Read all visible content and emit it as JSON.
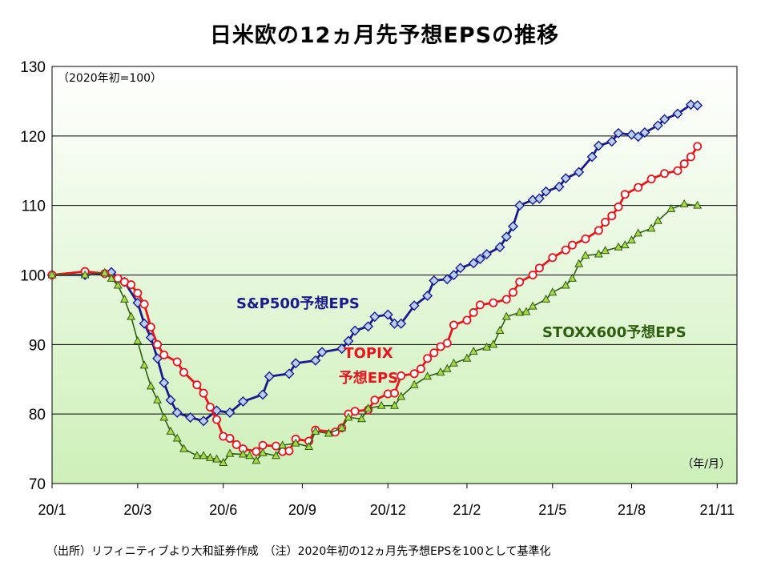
{
  "page": {
    "title": "日米欧の12ヵ月先予想EPSの推移",
    "note": "（出所）リフィニティブより大和証券作成　（注）2020年初の12ヵ月先予想EPSを100として基準化"
  },
  "chart_data": {
    "type": "line",
    "title": "日米欧の12ヵ月先予想EPSの推移",
    "subtitle": "（2020年初=100）",
    "unit_label": "（年/月）",
    "ylim": [
      70,
      130
    ],
    "yticks": [
      70,
      80,
      90,
      100,
      110,
      120,
      130
    ],
    "xlim": [
      0,
      104
    ],
    "xticks": [
      {
        "label": "20/1",
        "pos": 0
      },
      {
        "label": "20/3",
        "pos": 13
      },
      {
        "label": "20/6",
        "pos": 26
      },
      {
        "label": "20/9",
        "pos": 38
      },
      {
        "label": "20/12",
        "pos": 51
      },
      {
        "label": "21/2",
        "pos": 63
      },
      {
        "label": "21/5",
        "pos": 76
      },
      {
        "label": "21/8",
        "pos": 88
      },
      {
        "label": "21/11",
        "pos": 101
      }
    ],
    "grid": true,
    "colors": {
      "bg_top": "#ffffff",
      "bg_bottom": "#cdf0b8",
      "grid": "#000000",
      "sp500": "#1a1a8c",
      "sp500_marker": "#b8d0f0",
      "topix": "#e8141e",
      "topix_marker": "#ffffff",
      "stoxx": "#2e5e10",
      "stoxx_marker": "#a8d84a"
    },
    "series": [
      {
        "name": "S&P500予想EPS",
        "label_lines": [
          "S&P500予想EPS"
        ],
        "color_key": "sp500",
        "marker": "diamond",
        "anchors": [
          [
            0,
            100
          ],
          [
            5,
            100
          ],
          [
            9,
            100.4
          ],
          [
            11,
            99
          ],
          [
            13,
            96
          ],
          [
            14,
            93
          ],
          [
            15,
            91
          ],
          [
            16,
            88
          ],
          [
            17,
            84.5
          ],
          [
            18,
            82
          ],
          [
            19,
            80.2
          ],
          [
            21,
            79.5
          ],
          [
            23,
            79
          ],
          [
            25,
            80.5
          ],
          [
            27,
            80.2
          ],
          [
            29,
            81.8
          ],
          [
            32,
            82.8
          ],
          [
            33,
            85.4
          ],
          [
            36,
            85.8
          ],
          [
            37,
            87.3
          ],
          [
            40,
            87.7
          ],
          [
            41,
            88.9
          ],
          [
            44,
            89.4
          ],
          [
            45,
            90.5
          ],
          [
            46,
            92
          ],
          [
            48,
            92.6
          ],
          [
            49,
            94
          ],
          [
            51,
            94.3
          ],
          [
            52,
            93
          ],
          [
            53,
            93
          ],
          [
            55,
            95.6
          ],
          [
            57,
            97
          ],
          [
            58,
            99.2
          ],
          [
            60,
            99.4
          ],
          [
            61,
            100
          ],
          [
            62,
            101
          ],
          [
            64,
            101.7
          ],
          [
            65,
            102.3
          ],
          [
            66,
            103
          ],
          [
            68,
            104
          ],
          [
            69,
            105.5
          ],
          [
            70,
            107
          ],
          [
            71,
            110
          ],
          [
            73,
            110.8
          ],
          [
            74,
            111
          ],
          [
            75,
            112
          ],
          [
            77,
            112.7
          ],
          [
            78,
            113.9
          ],
          [
            80,
            114.8
          ],
          [
            82,
            117
          ],
          [
            83,
            118.6
          ],
          [
            85,
            119.2
          ],
          [
            86,
            120.4
          ],
          [
            88,
            120.2
          ],
          [
            89,
            119.9
          ],
          [
            90,
            120.5
          ],
          [
            92,
            121.5
          ],
          [
            93,
            122.4
          ],
          [
            95,
            123.2
          ],
          [
            97,
            124.5
          ],
          [
            98,
            124.4
          ]
        ]
      },
      {
        "name": "TOPIX予想EPS",
        "label_lines": [
          "TOPIX",
          "予想EPS"
        ],
        "color_key": "topix",
        "marker": "circle",
        "anchors": [
          [
            0,
            100
          ],
          [
            5,
            100.5
          ],
          [
            8,
            100.2
          ],
          [
            10,
            99.5
          ],
          [
            11,
            99
          ],
          [
            12,
            98.6
          ],
          [
            13,
            97.4
          ],
          [
            14,
            95.8
          ],
          [
            15,
            92.5
          ],
          [
            16,
            90
          ],
          [
            17,
            88.5
          ],
          [
            19,
            87.5
          ],
          [
            20,
            86
          ],
          [
            22,
            84.2
          ],
          [
            23,
            83
          ],
          [
            24,
            81
          ],
          [
            25,
            79.2
          ],
          [
            26,
            76.8
          ],
          [
            27,
            76.5
          ],
          [
            28,
            75.6
          ],
          [
            29,
            75
          ],
          [
            31,
            74.6
          ],
          [
            32,
            75.5
          ],
          [
            34,
            75.4
          ],
          [
            35,
            74.6
          ],
          [
            36,
            74.7
          ],
          [
            37,
            76.4
          ],
          [
            39,
            76.1
          ],
          [
            40,
            77.7
          ],
          [
            43,
            77.4
          ],
          [
            44,
            78
          ],
          [
            45,
            80
          ],
          [
            46,
            80.4
          ],
          [
            48,
            80.6
          ],
          [
            49,
            82
          ],
          [
            51,
            82.9
          ],
          [
            52,
            83
          ],
          [
            53,
            85.5
          ],
          [
            55,
            85.8
          ],
          [
            56,
            86.5
          ],
          [
            57,
            88
          ],
          [
            58,
            88.8
          ],
          [
            59,
            89.7
          ],
          [
            60,
            90.2
          ],
          [
            61,
            92.8
          ],
          [
            63,
            93.5
          ],
          [
            64,
            94.6
          ],
          [
            65,
            95.7
          ],
          [
            67,
            96
          ],
          [
            69,
            96.5
          ],
          [
            70,
            97.5
          ],
          [
            71,
            99
          ],
          [
            73,
            100
          ],
          [
            74,
            101
          ],
          [
            76,
            102.5
          ],
          [
            78,
            103.6
          ],
          [
            79,
            104.3
          ],
          [
            81,
            105.2
          ],
          [
            83,
            106.4
          ],
          [
            84,
            107.6
          ],
          [
            85,
            108.5
          ],
          [
            86,
            109.8
          ],
          [
            87,
            111.6
          ],
          [
            89,
            112.6
          ],
          [
            91,
            113.8
          ],
          [
            93,
            114.6
          ],
          [
            95,
            115
          ],
          [
            96,
            116
          ],
          [
            97,
            117
          ],
          [
            98,
            118.5
          ]
        ]
      },
      {
        "name": "STOXX600予想EPS",
        "label_lines": [
          "STOXX600予想EPS"
        ],
        "color_key": "stoxx",
        "marker": "triangle",
        "anchors": [
          [
            0,
            100
          ],
          [
            5,
            100
          ],
          [
            8,
            100.3
          ],
          [
            9,
            99.5
          ],
          [
            10,
            98.5
          ],
          [
            11,
            96.5
          ],
          [
            12,
            94
          ],
          [
            13,
            90.5
          ],
          [
            14,
            87
          ],
          [
            15,
            84
          ],
          [
            16,
            82
          ],
          [
            17,
            79.5
          ],
          [
            18,
            77.5
          ],
          [
            19,
            76.5
          ],
          [
            20,
            75
          ],
          [
            22,
            74
          ],
          [
            23,
            74
          ],
          [
            24,
            73.7
          ],
          [
            25,
            73.5
          ],
          [
            26,
            73
          ],
          [
            27,
            74.3
          ],
          [
            29,
            74.2
          ],
          [
            30,
            74
          ],
          [
            31,
            73.3
          ],
          [
            32,
            74.4
          ],
          [
            34,
            74
          ],
          [
            35,
            75.5
          ],
          [
            37,
            75.8
          ],
          [
            39,
            75.3
          ],
          [
            40,
            77.5
          ],
          [
            42,
            77.2
          ],
          [
            44,
            78
          ],
          [
            45,
            79.5
          ],
          [
            47,
            79.3
          ],
          [
            48,
            80.8
          ],
          [
            50,
            81.2
          ],
          [
            52,
            81.2
          ],
          [
            53,
            82.5
          ],
          [
            55,
            84.2
          ],
          [
            57,
            85.4
          ],
          [
            59,
            86
          ],
          [
            60,
            86.5
          ],
          [
            61,
            87.3
          ],
          [
            63,
            88
          ],
          [
            64,
            89
          ],
          [
            66,
            89.6
          ],
          [
            67,
            90
          ],
          [
            68,
            92
          ],
          [
            69,
            94
          ],
          [
            71,
            94.6
          ],
          [
            72,
            94.7
          ],
          [
            73,
            95.5
          ],
          [
            75,
            96.5
          ],
          [
            76,
            97.5
          ],
          [
            78,
            98.5
          ],
          [
            79,
            99.5
          ],
          [
            80,
            101.6
          ],
          [
            81,
            102.8
          ],
          [
            83,
            103
          ],
          [
            84,
            103.5
          ],
          [
            86,
            104
          ],
          [
            87,
            104.3
          ],
          [
            88,
            105
          ],
          [
            89,
            106
          ],
          [
            91,
            106.7
          ],
          [
            92,
            107.8
          ],
          [
            94,
            109.5
          ],
          [
            96,
            110.2
          ],
          [
            98,
            110
          ]
        ]
      }
    ]
  }
}
